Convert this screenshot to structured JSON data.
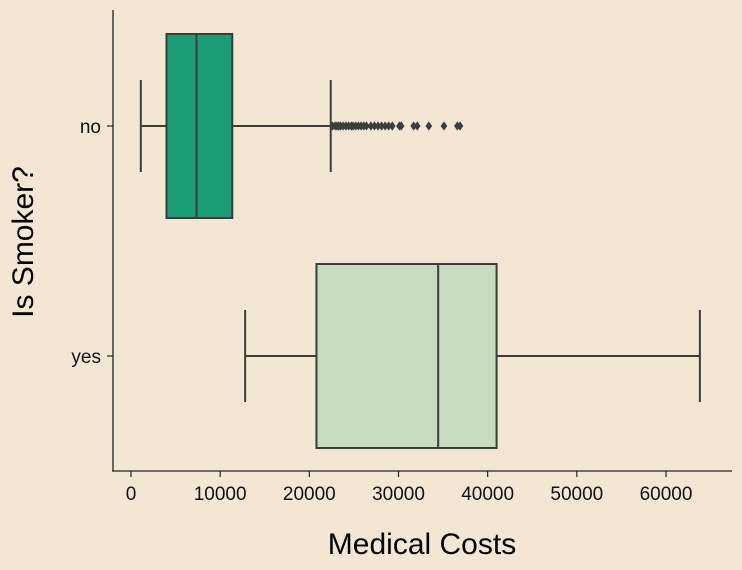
{
  "chart_data": {
    "type": "box",
    "orientation": "horizontal",
    "xlabel": "Medical Costs",
    "ylabel": "Is Smoker?",
    "xlim": [
      -2000,
      67000
    ],
    "xticks": [
      0,
      10000,
      20000,
      30000,
      40000,
      50000,
      60000
    ],
    "xtick_labels": [
      "0",
      "10000",
      "20000",
      "30000",
      "40000",
      "50000",
      "60000"
    ],
    "categories": [
      "no",
      "yes"
    ],
    "grid": false,
    "colors": {
      "background": "#f3e7d3",
      "no": "#1b9e77",
      "yes": "#c7dbbd",
      "line": "#3c3c3c"
    },
    "boxes": [
      {
        "category": "no",
        "whisker_low": 1100,
        "q1": 3980,
        "median": 7350,
        "q3": 11360,
        "whisker_high": 22400,
        "outliers": [
          22600,
          22900,
          23100,
          23300,
          23500,
          23800,
          24100,
          24400,
          24700,
          24900,
          25200,
          25500,
          25800,
          26100,
          26400,
          26900,
          27300,
          27700,
          28100,
          28500,
          28900,
          29300,
          30100,
          30300,
          31700,
          32100,
          33400,
          35100,
          36600,
          36900
        ]
      },
      {
        "category": "yes",
        "whisker_low": 12800,
        "q1": 20800,
        "median": 34450,
        "q3": 41000,
        "whisker_high": 63800,
        "outliers": []
      }
    ]
  }
}
